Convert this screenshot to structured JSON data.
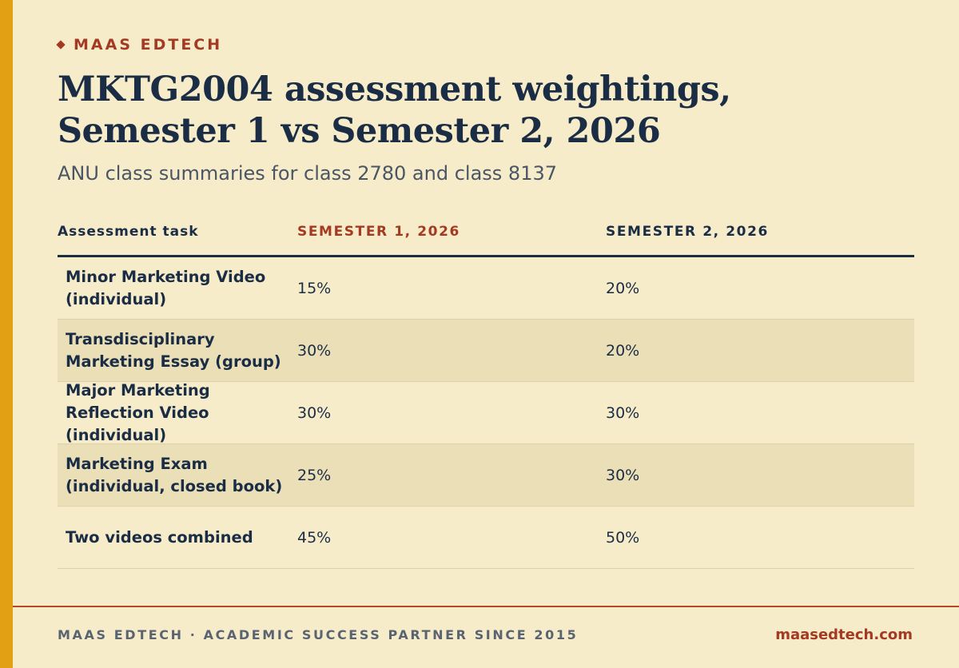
{
  "brand": "MAAS EDTECH",
  "title": "MKTG2004 assessment weightings, Semester 1 vs Semester 2, 2026",
  "subtitle": "ANU class summaries for class 2780 and class 8137",
  "table": {
    "headers": [
      "Assessment task",
      "SEMESTER 1, 2026",
      "SEMESTER 2, 2026"
    ],
    "rows": [
      {
        "task": "Minor Marketing Video (individual)",
        "s1": "15%",
        "s2": "20%"
      },
      {
        "task": "Transdisciplinary Marketing Essay (group)",
        "s1": "30%",
        "s2": "20%"
      },
      {
        "task": "Major Marketing Reflection Video (individual)",
        "s1": "30%",
        "s2": "30%"
      },
      {
        "task": "Marketing Exam (individual, closed book)",
        "s1": "25%",
        "s2": "30%"
      },
      {
        "task": "Two videos combined",
        "s1": "45%",
        "s2": "50%"
      }
    ]
  },
  "footer": {
    "left": "MAAS EDTECH · ACADEMIC SUCCESS PARTNER SINCE 2015",
    "right": "maasedtech.com"
  },
  "colors": {
    "background": "#f6ecca",
    "accent_bar": "#e2a115",
    "brand_red": "#a33a21",
    "navy": "#1b2d45",
    "row_shade": "#ebdfb8"
  }
}
